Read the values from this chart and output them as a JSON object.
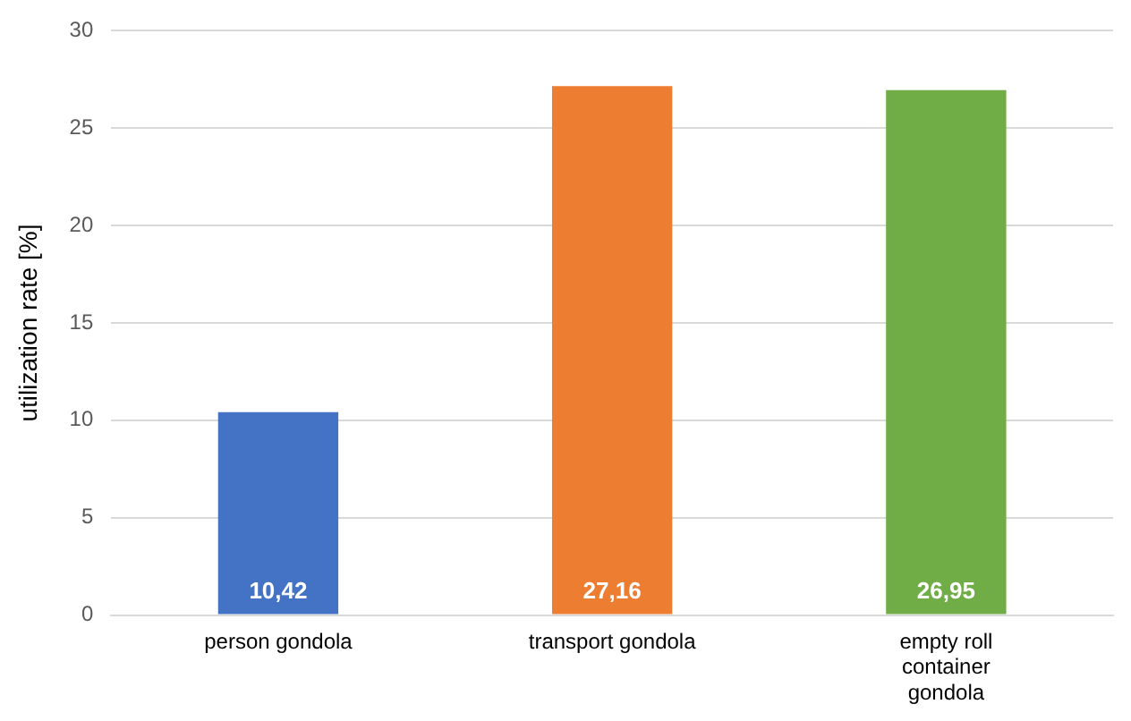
{
  "chart_data": {
    "type": "bar",
    "ylabel": "utilization rate [%]",
    "categories": [
      "person gondola",
      "transport gondola",
      "empty roll container gondola"
    ],
    "values": [
      10.42,
      27.16,
      26.95
    ],
    "colors": [
      "#4472c4",
      "#ed7d31",
      "#70ad47"
    ],
    "value_labels": [
      "10,42",
      "27,16",
      "26,95"
    ],
    "ylim": [
      0,
      30
    ],
    "yticks": [
      0,
      5,
      10,
      15,
      20,
      25,
      30
    ],
    "grid": "y",
    "legend": false
  }
}
